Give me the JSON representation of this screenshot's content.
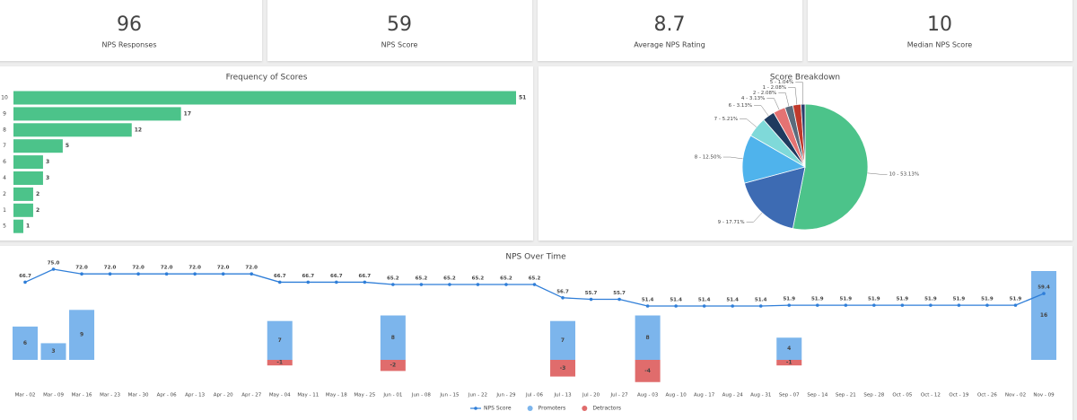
{
  "kpis": [
    {
      "value": 96,
      "label": "NPS Responses"
    },
    {
      "value": 59,
      "label": "NPS Score"
    },
    {
      "value": 8.7,
      "label": "Average NPS Rating"
    },
    {
      "value": 10,
      "label": "Median NPS Score"
    }
  ],
  "chart_data": [
    {
      "type": "bar",
      "title": "Frequency of Scores",
      "categories": [
        "10",
        "9",
        "8",
        "7",
        "6",
        "4",
        "2",
        "1",
        "5"
      ],
      "values": [
        51,
        17,
        12,
        5,
        3,
        3,
        2,
        2,
        1
      ],
      "color": "#4cc38a"
    },
    {
      "type": "pie",
      "title": "Score Breakdown",
      "categories": [
        "10",
        "9",
        "8",
        "7",
        "6",
        "4",
        "2",
        "1",
        "5"
      ],
      "values": [
        53.13,
        17.71,
        12.5,
        5.21,
        3.13,
        3.13,
        2.08,
        2.08,
        1.04
      ],
      "value_labels": [
        "10 - 53.13%",
        "9 - 17.71%",
        "8 - 12.50%",
        "7 - 5.21%",
        "6 - 3.13%",
        "4 - 3.13%",
        "2 - 2.08%",
        "1 - 2.08%",
        "5 - 1.04%"
      ],
      "colors": [
        "#4cc38a",
        "#3d6bb3",
        "#4fb3ec",
        "#7fd9d9",
        "#1f3a5f",
        "#e57373",
        "#5b6b7c",
        "#c0392b",
        "#2c3e6b"
      ]
    },
    {
      "type": "combo",
      "title": "NPS Over Time",
      "categories": [
        "Mar - 02",
        "Mar - 09",
        "Mar - 16",
        "Mar - 23",
        "Mar - 30",
        "Apr - 06",
        "Apr - 13",
        "Apr - 20",
        "Apr - 27",
        "May - 04",
        "May - 11",
        "May - 18",
        "May - 25",
        "Jun - 01",
        "Jun - 08",
        "Jun - 15",
        "Jun - 22",
        "Jun - 29",
        "Jul - 06",
        "Jul - 13",
        "Jul - 20",
        "Jul - 27",
        "Aug - 03",
        "Aug - 10",
        "Aug - 17",
        "Aug - 24",
        "Aug - 31",
        "Sep - 07",
        "Sep - 14",
        "Sep - 21",
        "Sep - 28",
        "Oct - 05",
        "Oct - 12",
        "Oct - 19",
        "Oct - 26",
        "Nov - 02",
        "Nov - 09"
      ],
      "series": [
        {
          "name": "NPS Score",
          "type": "line",
          "color": "#2f7ed8",
          "values": [
            66.7,
            75,
            72,
            72,
            72,
            72,
            72,
            72,
            72,
            66.7,
            66.7,
            66.7,
            66.7,
            65.2,
            65.2,
            65.2,
            65.2,
            65.2,
            65.2,
            56.7,
            55.7,
            55.7,
            51.4,
            51.4,
            51.4,
            51.4,
            51.4,
            51.9,
            51.9,
            51.9,
            51.9,
            51.9,
            51.9,
            51.9,
            51.9,
            51.9,
            59.4
          ],
          "value_labels": [
            "66.7",
            "75.0",
            "72.0",
            "72.0",
            "72.0",
            "72.0",
            "72.0",
            "72.0",
            "72.0",
            "66.7",
            "66.7",
            "66.7",
            "66.7",
            "65.2",
            "65.2",
            "65.2",
            "65.2",
            "65.2",
            "65.2",
            "56.7",
            "55.7",
            "55.7",
            "51.4",
            "51.4",
            "51.4",
            "51.4",
            "51.4",
            "51.9",
            "51.9",
            "51.9",
            "51.9",
            "51.9",
            "51.9",
            "51.9",
            "51.9",
            "51.9",
            "59.4"
          ]
        },
        {
          "name": "Promoters",
          "type": "bar",
          "color": "#7cb5ec",
          "values": [
            6,
            3,
            9,
            null,
            null,
            null,
            null,
            null,
            null,
            7,
            null,
            null,
            null,
            8,
            null,
            null,
            null,
            null,
            null,
            7,
            null,
            null,
            8,
            null,
            null,
            null,
            null,
            4,
            null,
            null,
            null,
            null,
            null,
            null,
            null,
            null,
            16
          ]
        },
        {
          "name": "Detractors",
          "type": "bar",
          "color": "#e06c6c",
          "values": [
            null,
            null,
            null,
            null,
            null,
            null,
            null,
            null,
            null,
            -1,
            null,
            null,
            null,
            -2,
            null,
            null,
            null,
            null,
            null,
            -3,
            null,
            null,
            -4,
            null,
            null,
            null,
            null,
            -1,
            null,
            null,
            null,
            null,
            null,
            null,
            null,
            null,
            null
          ]
        }
      ]
    }
  ]
}
